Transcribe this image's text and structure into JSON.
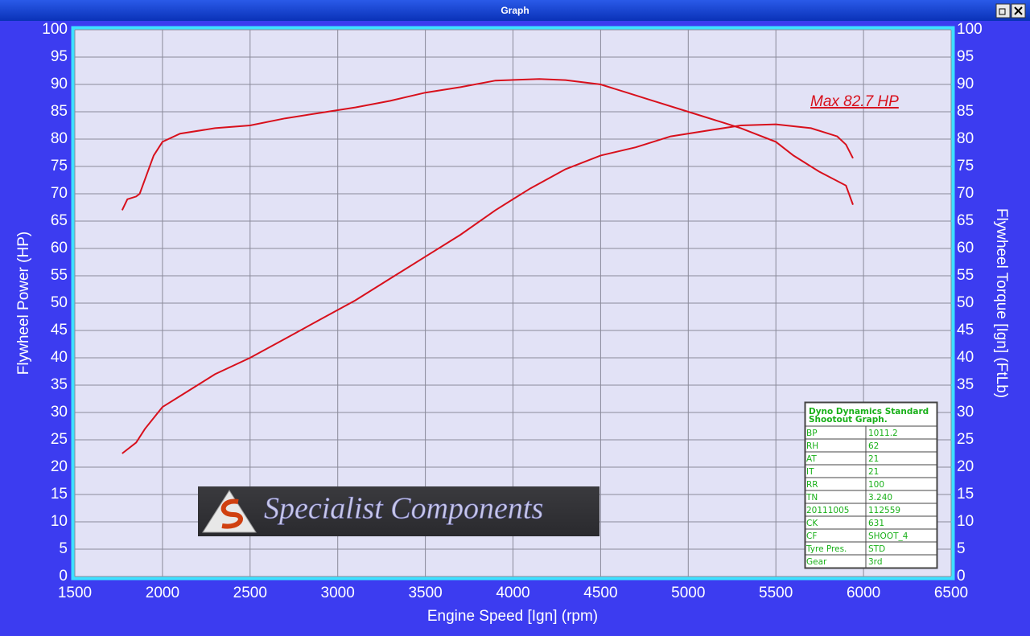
{
  "window": {
    "title": "Graph"
  },
  "chart_data": {
    "type": "line",
    "xlabel": "Engine Speed [Ign] (rpm)",
    "ylabel": "Flywheel Power (HP)",
    "y2label": "Flywheel Torque [Ign] (FtLb)",
    "annotations": [
      "Max 82.7 HP"
    ],
    "xlim": [
      1500,
      6500
    ],
    "xticks": [
      1500,
      2000,
      2500,
      3000,
      3500,
      4000,
      4500,
      5000,
      5500,
      6000,
      6500
    ],
    "ylim": [
      0,
      100
    ],
    "yticks": [
      0,
      5,
      10,
      15,
      20,
      25,
      30,
      35,
      40,
      45,
      50,
      55,
      60,
      65,
      70,
      75,
      80,
      85,
      90,
      95,
      100
    ],
    "y2lim": [
      0,
      100
    ],
    "y2ticks": [
      0,
      5,
      10,
      15,
      20,
      25,
      30,
      35,
      40,
      45,
      50,
      55,
      60,
      65,
      70,
      75,
      80,
      85,
      90,
      95,
      100
    ],
    "grid": true,
    "series": [
      {
        "color": "#d8101c",
        "x": [
          1770,
          1850,
          1900,
          2000,
          2100,
          2200,
          2300,
          2500,
          2700,
          2900,
          3100,
          3300,
          3500,
          3700,
          3900,
          4100,
          4300,
          4500,
          4700,
          4900,
          5100,
          5300,
          5500,
          5700,
          5850,
          5900,
          5940
        ],
        "values": [
          22.5,
          24.5,
          27,
          31,
          33,
          35,
          37,
          40,
          43.5,
          47,
          50.5,
          54.5,
          58.5,
          62.5,
          67,
          71,
          74.5,
          77,
          78.5,
          80.5,
          81.5,
          82.5,
          82.7,
          82,
          80.5,
          79,
          76.5
        ]
      },
      {
        "color": "#d8101c",
        "axis": "y2",
        "x": [
          1770,
          1800,
          1850,
          1870,
          1910,
          1950,
          2000,
          2100,
          2300,
          2500,
          2700,
          2900,
          3100,
          3300,
          3500,
          3700,
          3900,
          4150,
          4300,
          4500,
          4650,
          4800,
          5000,
          5200,
          5300,
          5500,
          5600,
          5750,
          5900,
          5940
        ],
        "values": [
          67,
          69,
          69.5,
          70,
          73.5,
          77,
          79.5,
          81,
          82,
          82.5,
          83.8,
          84.8,
          85.8,
          87,
          88.5,
          89.5,
          90.7,
          91,
          90.8,
          90,
          88.5,
          87,
          85,
          83,
          82,
          79.5,
          77,
          74,
          71.5,
          68
        ]
      }
    ]
  },
  "logo": {
    "text": "Specialist Components"
  },
  "info_table": {
    "title": "Dyno Dynamics Standard Shootout Graph.",
    "rows": [
      [
        "BP",
        "1011.2"
      ],
      [
        "RH",
        "62"
      ],
      [
        "AT",
        "21"
      ],
      [
        "IT",
        "21"
      ],
      [
        "RR",
        "100"
      ],
      [
        "TN",
        "3.240"
      ],
      [
        "20111005",
        "112559"
      ],
      [
        "CK",
        "631"
      ],
      [
        "CF",
        "SHOOT_4"
      ],
      [
        "Tyre Pres.",
        "STD"
      ],
      [
        "Gear",
        "3rd"
      ]
    ]
  }
}
